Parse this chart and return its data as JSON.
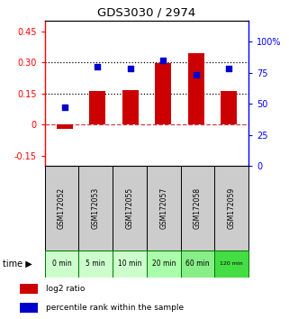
{
  "title": "GDS3030 / 2974",
  "categories": [
    "GSM172052",
    "GSM172053",
    "GSM172055",
    "GSM172057",
    "GSM172058",
    "GSM172059"
  ],
  "time_labels": [
    "0 min",
    "5 min",
    "10 min",
    "20 min",
    "60 min",
    "120 min"
  ],
  "log2_ratio": [
    -0.02,
    0.16,
    0.165,
    0.295,
    0.345,
    0.16
  ],
  "percentile_rank": [
    47,
    80,
    78,
    85,
    73,
    78
  ],
  "bar_color": "#cc0000",
  "dot_color": "#0000cc",
  "ylim_left": [
    -0.2,
    0.5
  ],
  "ylim_right": [
    0,
    116.67
  ],
  "yticks_left": [
    -0.15,
    0.0,
    0.15,
    0.3,
    0.45
  ],
  "yticks_right": [
    0,
    25,
    50,
    75,
    100
  ],
  "ytick_labels_left": [
    "-0.15",
    "0",
    "0.15",
    "0.30",
    "0.45"
  ],
  "ytick_labels_right": [
    "0",
    "25",
    "50",
    "75",
    "100%"
  ],
  "hlines_dotted": [
    0.15,
    0.3
  ],
  "hline_dashed_color": "#cc4444",
  "bg_color_gsm": "#cccccc",
  "bg_color_time_light": "#ccffcc",
  "bg_color_time_dark": "#44dd44",
  "time_border_color": "#007700",
  "legend_labels": [
    "log2 ratio",
    "percentile rank within the sample"
  ],
  "time_colors": [
    "#ccffcc",
    "#ccffcc",
    "#ccffcc",
    "#aaffaa",
    "#88ee88",
    "#44dd44"
  ]
}
